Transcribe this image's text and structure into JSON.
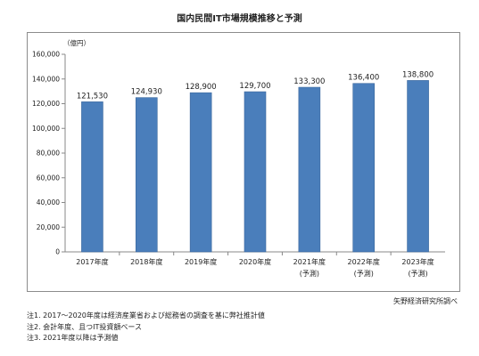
{
  "chart_data": {
    "type": "bar",
    "title": "国内民間IT市場規模推移と予測",
    "unit_label": "（億円）",
    "categories": [
      "2017年度",
      "2018年度",
      "2019年度",
      "2020年度",
      "2021年度",
      "2022年度",
      "2023年度"
    ],
    "category_sublabels": [
      "",
      "",
      "",
      "",
      "(予測)",
      "(予測)",
      "(予測)"
    ],
    "value_labels": [
      "121,530",
      "124,930",
      "128,900",
      "129,700",
      "133,300",
      "136,400",
      "138,800"
    ],
    "values": [
      121530,
      124930,
      128900,
      129700,
      133300,
      136400,
      138800
    ],
    "ylim": [
      0,
      160000
    ],
    "yticks": [
      0,
      20000,
      40000,
      60000,
      80000,
      100000,
      120000,
      140000,
      160000
    ],
    "ytick_labels": [
      "0",
      "20,000",
      "40,000",
      "60,000",
      "80,000",
      "100,000",
      "120,000",
      "140,000",
      "160,000"
    ],
    "grid": false,
    "legend": "none",
    "colors": {
      "bar": "#4a7ebb",
      "bar_edge": "#3a669c"
    }
  },
  "source": "矢野経済研究所調べ",
  "notes": [
    "注1. 2017～2020年度は経済産業省および総務省の調査を基に弊社推計値",
    "注2. 会計年度、且つIT投資額ベース",
    "注3. 2021年度以降は予測値"
  ]
}
